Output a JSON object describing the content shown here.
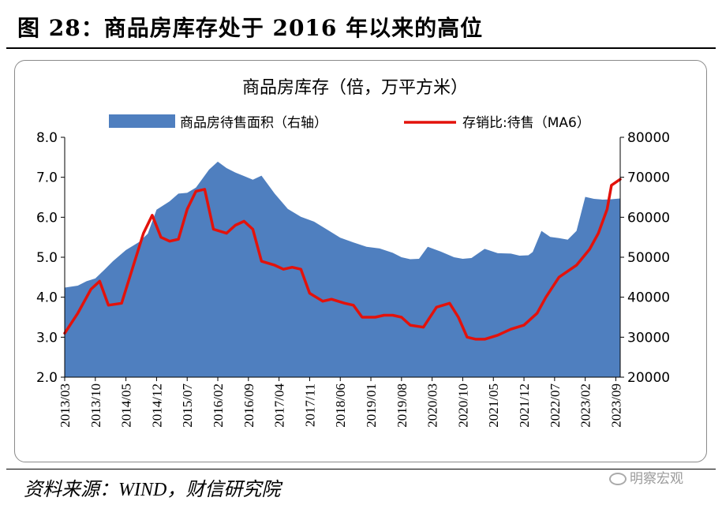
{
  "header": {
    "figure_title": "图 28：商品房库存处于 2016 年以来的高位"
  },
  "footer": {
    "source": "资料来源：WIND，财信研究院",
    "watermark": "明察宏观"
  },
  "chart_data": {
    "type": "line",
    "title": "商品房库存（倍，万平方米）",
    "legend_position": "top",
    "grid": false,
    "x_tick_labels": [
      "2013/03",
      "2013/10",
      "2014/05",
      "2014/12",
      "2015/07",
      "2016/02",
      "2016/09",
      "2017/04",
      "2017/11",
      "2018/06",
      "2019/01",
      "2019/08",
      "2020/03",
      "2020/10",
      "2021/05",
      "2021/12",
      "2022/07",
      "2023/02",
      "2023/09"
    ],
    "x_range": [
      "2013/03",
      "2023/10"
    ],
    "y_left": {
      "range": [
        2.0,
        8.0
      ],
      "ticks": [
        "2.0",
        "3.0",
        "4.0",
        "5.0",
        "6.0",
        "7.0",
        "8.0"
      ]
    },
    "y_right": {
      "range": [
        20000,
        80000
      ],
      "ticks": [
        "20000",
        "30000",
        "40000",
        "50000",
        "60000",
        "70000",
        "80000"
      ]
    },
    "series": [
      {
        "name": "商品房待售面积（右轴）",
        "type": "area",
        "axis": "right",
        "color": "#4f7fbf",
        "points": [
          [
            "2013/03",
            42400
          ],
          [
            "2013/06",
            42900
          ],
          [
            "2013/08",
            44000
          ],
          [
            "2013/10",
            44700
          ],
          [
            "2013/12",
            46800
          ],
          [
            "2014/02",
            49000
          ],
          [
            "2014/05",
            51800
          ],
          [
            "2014/08",
            53800
          ],
          [
            "2014/10",
            55900
          ],
          [
            "2014/12",
            61900
          ],
          [
            "2015/03",
            64000
          ],
          [
            "2015/05",
            65900
          ],
          [
            "2015/07",
            66100
          ],
          [
            "2015/09",
            67400
          ],
          [
            "2015/12",
            71900
          ],
          [
            "2016/02",
            73900
          ],
          [
            "2016/04",
            72300
          ],
          [
            "2016/06",
            71200
          ],
          [
            "2016/08",
            70300
          ],
          [
            "2016/10",
            69400
          ],
          [
            "2016/12",
            70400
          ],
          [
            "2017/03",
            65900
          ],
          [
            "2017/06",
            62100
          ],
          [
            "2017/09",
            60100
          ],
          [
            "2017/12",
            58900
          ],
          [
            "2018/03",
            56900
          ],
          [
            "2018/06",
            54900
          ],
          [
            "2018/09",
            53700
          ],
          [
            "2018/12",
            52600
          ],
          [
            "2019/03",
            52200
          ],
          [
            "2019/06",
            51100
          ],
          [
            "2019/08",
            50000
          ],
          [
            "2019/10",
            49500
          ],
          [
            "2019/12",
            49600
          ],
          [
            "2020/02",
            52600
          ],
          [
            "2020/05",
            51400
          ],
          [
            "2020/08",
            50000
          ],
          [
            "2020/10",
            49600
          ],
          [
            "2020/12",
            49800
          ],
          [
            "2021/03",
            52100
          ],
          [
            "2021/06",
            51000
          ],
          [
            "2021/09",
            50900
          ],
          [
            "2021/11",
            50400
          ],
          [
            "2022/01",
            50500
          ],
          [
            "2022/02",
            51300
          ],
          [
            "2022/04",
            56600
          ],
          [
            "2022/06",
            55100
          ],
          [
            "2022/08",
            54800
          ],
          [
            "2022/10",
            54400
          ],
          [
            "2022/12",
            56600
          ],
          [
            "2023/02",
            65100
          ],
          [
            "2023/04",
            64600
          ],
          [
            "2023/06",
            64400
          ],
          [
            "2023/08",
            64500
          ],
          [
            "2023/10",
            64700
          ]
        ]
      },
      {
        "name": "存销比:待售（MA6）",
        "type": "line",
        "axis": "left",
        "color": "#e3120b",
        "points": [
          [
            "2013/03",
            3.1
          ],
          [
            "2013/06",
            3.6
          ],
          [
            "2013/09",
            4.2
          ],
          [
            "2013/11",
            4.4
          ],
          [
            "2014/01",
            3.8
          ],
          [
            "2014/04",
            3.85
          ],
          [
            "2014/07",
            4.9
          ],
          [
            "2014/09",
            5.6
          ],
          [
            "2014/11",
            6.05
          ],
          [
            "2015/01",
            5.5
          ],
          [
            "2015/03",
            5.4
          ],
          [
            "2015/05",
            5.45
          ],
          [
            "2015/07",
            6.2
          ],
          [
            "2015/09",
            6.65
          ],
          [
            "2015/11",
            6.7
          ],
          [
            "2016/01",
            5.7
          ],
          [
            "2016/04",
            5.6
          ],
          [
            "2016/06",
            5.8
          ],
          [
            "2016/08",
            5.9
          ],
          [
            "2016/10",
            5.7
          ],
          [
            "2016/12",
            4.9
          ],
          [
            "2017/03",
            4.8
          ],
          [
            "2017/05",
            4.7
          ],
          [
            "2017/07",
            4.75
          ],
          [
            "2017/09",
            4.7
          ],
          [
            "2017/11",
            4.1
          ],
          [
            "2018/02",
            3.9
          ],
          [
            "2018/04",
            3.95
          ],
          [
            "2018/07",
            3.85
          ],
          [
            "2018/09",
            3.8
          ],
          [
            "2018/11",
            3.5
          ],
          [
            "2019/02",
            3.5
          ],
          [
            "2019/04",
            3.55
          ],
          [
            "2019/06",
            3.55
          ],
          [
            "2019/08",
            3.5
          ],
          [
            "2019/10",
            3.3
          ],
          [
            "2020/01",
            3.25
          ],
          [
            "2020/04",
            3.75
          ],
          [
            "2020/07",
            3.85
          ],
          [
            "2020/09",
            3.5
          ],
          [
            "2020/11",
            3.0
          ],
          [
            "2021/01",
            2.95
          ],
          [
            "2021/03",
            2.95
          ],
          [
            "2021/06",
            3.05
          ],
          [
            "2021/09",
            3.2
          ],
          [
            "2021/12",
            3.3
          ],
          [
            "2022/03",
            3.6
          ],
          [
            "2022/05",
            4.0
          ],
          [
            "2022/08",
            4.5
          ],
          [
            "2022/10",
            4.65
          ],
          [
            "2022/12",
            4.8
          ],
          [
            "2023/03",
            5.2
          ],
          [
            "2023/05",
            5.6
          ],
          [
            "2023/07",
            6.2
          ],
          [
            "2023/08",
            6.8
          ],
          [
            "2023/10",
            6.95
          ]
        ]
      }
    ]
  }
}
